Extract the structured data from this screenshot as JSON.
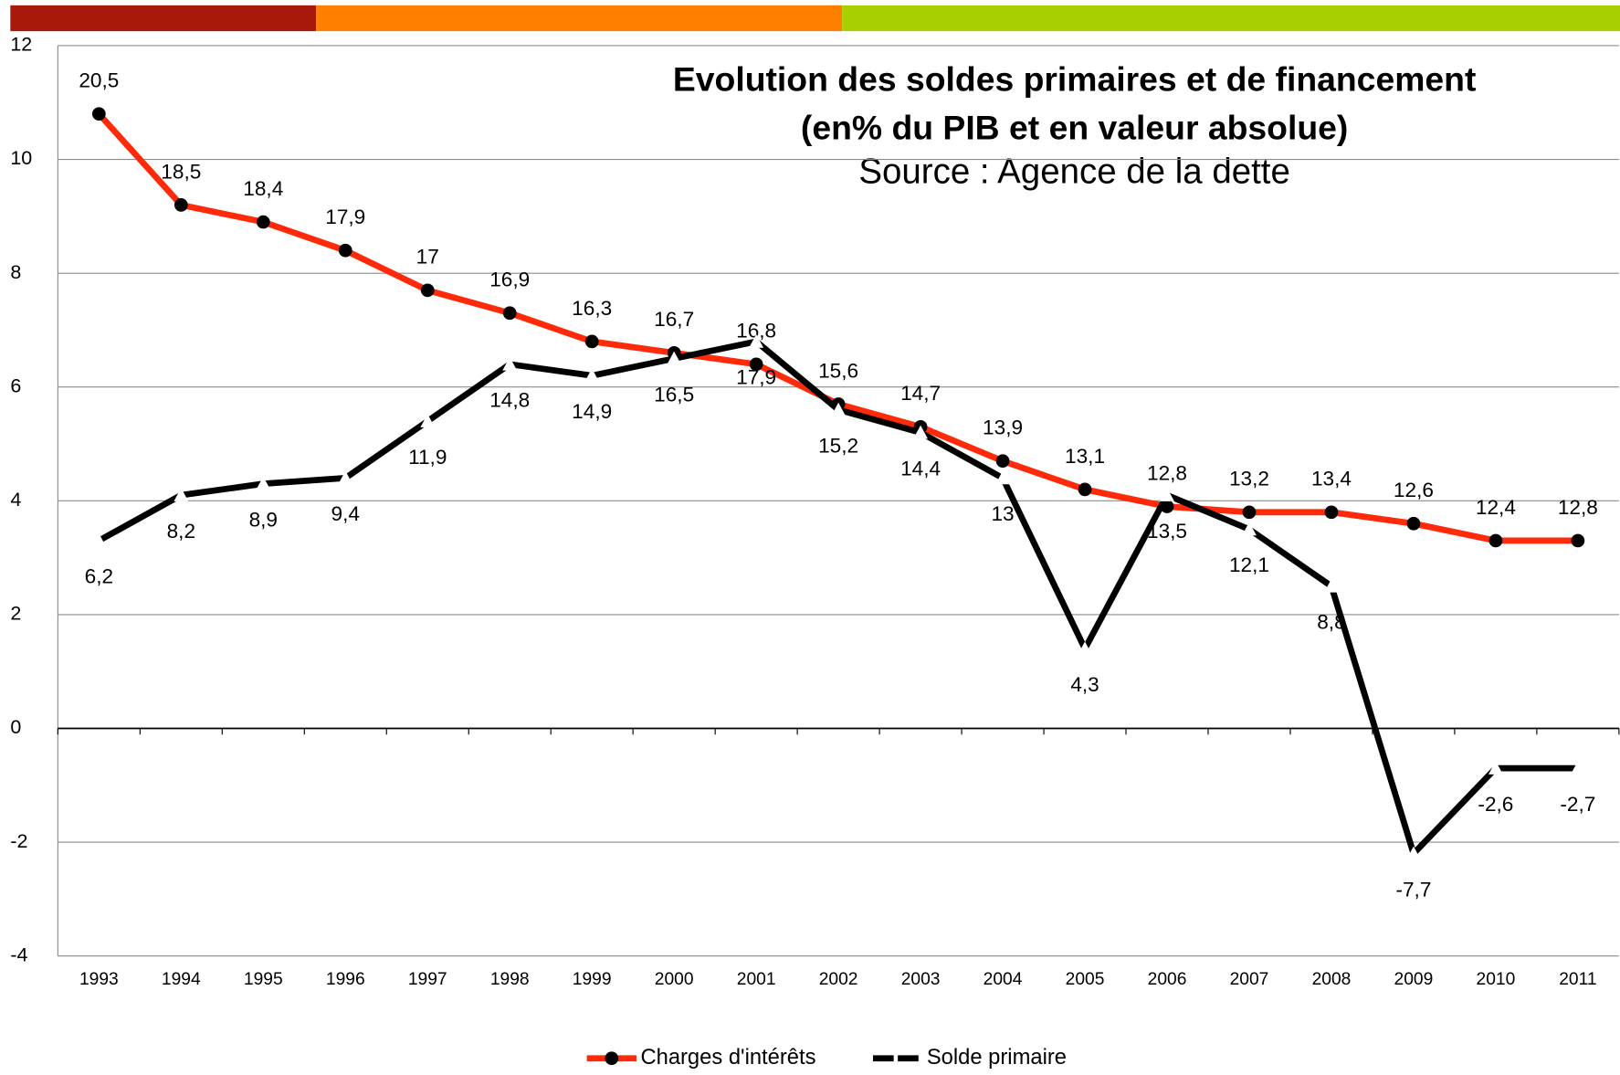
{
  "chart_data": {
    "type": "line",
    "title": "Evolution des soldes primaires et de financement",
    "subtitle": "(en% du PIB et en valeur absolue)",
    "source": "Source : Agence de la dette",
    "categories": [
      "1993",
      "1994",
      "1995",
      "1996",
      "1997",
      "1998",
      "1999",
      "2000",
      "2001",
      "2002",
      "2003",
      "2004",
      "2005",
      "2006",
      "2007",
      "2008",
      "2009",
      "2010",
      "2011"
    ],
    "series": [
      {
        "name": "Charges d'intérêts",
        "color": "#ff2a0a",
        "marker_color": "#000000",
        "marker": "circle",
        "values": [
          10.8,
          9.2,
          8.9,
          8.4,
          7.7,
          7.3,
          6.8,
          6.6,
          6.4,
          5.7,
          5.3,
          4.7,
          4.2,
          3.9,
          3.8,
          3.8,
          3.6,
          3.3,
          3.3
        ],
        "labels": [
          "20,5",
          "18,5",
          "18,4",
          "17,9",
          "17",
          "16,9",
          "16,3",
          "16,7",
          "16,8",
          "15,6",
          "14,7",
          "13,9",
          "13,1",
          "12,8",
          "13,2",
          "13,4",
          "12,6",
          "12,4",
          "12,8"
        ]
      },
      {
        "name": "Solde primaire",
        "color": "#000000",
        "marker_color": "#ffffff",
        "marker": "triangle",
        "values": [
          3.3,
          4.1,
          4.3,
          4.4,
          5.4,
          6.4,
          6.2,
          6.5,
          6.8,
          5.6,
          5.2,
          4.4,
          1.4,
          4.1,
          3.5,
          2.5,
          -2.2,
          -0.7,
          -0.7
        ],
        "labels": [
          "6,2",
          "8,2",
          "8,9",
          "9,4",
          "11,9",
          "14,8",
          "14,9",
          "16,5",
          "17,9",
          "15,2",
          "14,4",
          "13",
          "4,3",
          "13,5",
          "12,1",
          "8,8",
          "-7,7",
          "-2,6",
          "-2,7"
        ]
      }
    ],
    "ylim": [
      -4,
      12
    ],
    "yticks": [
      -4,
      -2,
      0,
      2,
      4,
      6,
      8,
      10,
      12
    ],
    "grid": true,
    "legend": "bottom"
  }
}
